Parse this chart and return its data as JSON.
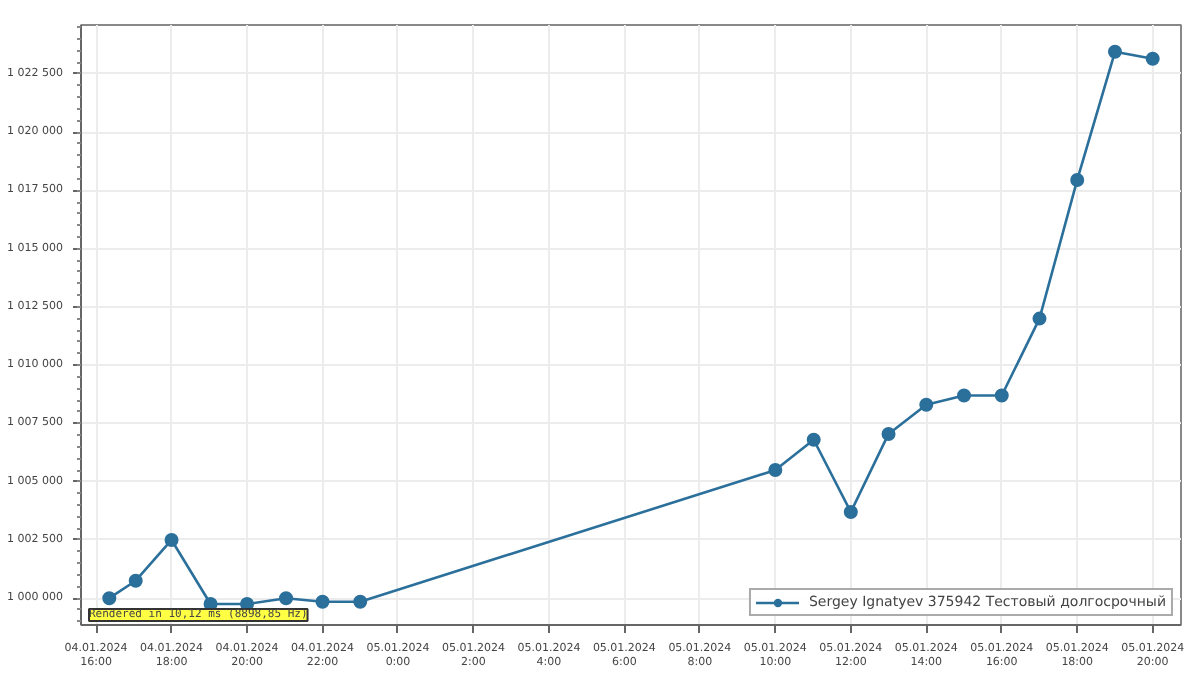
{
  "chart_data": {
    "type": "line",
    "x": [
      "2024-01-04T16:21",
      "2024-01-04T17:03",
      "2024-01-04T18:00",
      "2024-01-04T19:02",
      "2024-01-04T20:00",
      "2024-01-04T21:02",
      "2024-01-04T22:00",
      "2024-01-04T23:00",
      "2024-01-05T10:00",
      "2024-01-05T11:01",
      "2024-01-05T12:00",
      "2024-01-05T13:00",
      "2024-01-05T14:00",
      "2024-01-05T15:00",
      "2024-01-05T16:00",
      "2024-01-05T17:00",
      "2024-01-05T18:00",
      "2024-01-05T19:00",
      "2024-01-05T20:00"
    ],
    "series": [
      {
        "name": "Sergey Ignatyev 375942 Тестовый долгосрочный",
        "color": "#2b6f9b",
        "values": [
          1000000,
          1000750,
          1002500,
          999750,
          999750,
          1000000,
          999850,
          999850,
          1005500,
          1006800,
          1003700,
          1007050,
          1008300,
          1008700,
          1008700,
          1012000,
          1017950,
          1023450,
          1023150
        ]
      }
    ],
    "xlim": [
      "2024-01-04T15:36",
      "2024-01-05T20:45"
    ],
    "xticks": [
      {
        "value": "2024-01-04T16:00",
        "label": "04.01.2024\n16:00"
      },
      {
        "value": "2024-01-04T18:00",
        "label": "04.01.2024\n18:00"
      },
      {
        "value": "2024-01-04T20:00",
        "label": "04.01.2024\n20:00"
      },
      {
        "value": "2024-01-04T22:00",
        "label": "04.01.2024\n22:00"
      },
      {
        "value": "2024-01-05T00:00",
        "label": "05.01.2024\n0:00"
      },
      {
        "value": "2024-01-05T02:00",
        "label": "05.01.2024\n2:00"
      },
      {
        "value": "2024-01-05T04:00",
        "label": "05.01.2024\n4:00"
      },
      {
        "value": "2024-01-05T06:00",
        "label": "05.01.2024\n6:00"
      },
      {
        "value": "2024-01-05T08:00",
        "label": "05.01.2024\n8:00"
      },
      {
        "value": "2024-01-05T10:00",
        "label": "05.01.2024\n10:00"
      },
      {
        "value": "2024-01-05T12:00",
        "label": "05.01.2024\n12:00"
      },
      {
        "value": "2024-01-05T14:00",
        "label": "05.01.2024\n14:00"
      },
      {
        "value": "2024-01-05T16:00",
        "label": "05.01.2024\n16:00"
      },
      {
        "value": "2024-01-05T18:00",
        "label": "05.01.2024\n18:00"
      },
      {
        "value": "2024-01-05T20:00",
        "label": "05.01.2024\n20:00"
      }
    ],
    "ylim": [
      998850,
      1024600
    ],
    "yticks": [
      {
        "value": 1000000,
        "label": "1 000 000"
      },
      {
        "value": 1002500,
        "label": "1 002 500"
      },
      {
        "value": 1005000,
        "label": "1 005 000"
      },
      {
        "value": 1007500,
        "label": "1 007 500"
      },
      {
        "value": 1010000,
        "label": "1 010 000"
      },
      {
        "value": 1012500,
        "label": "1 012 500"
      },
      {
        "value": 1015000,
        "label": "1 015 000"
      },
      {
        "value": 1017500,
        "label": "1 017 500"
      },
      {
        "value": 1020000,
        "label": "1 020 000"
      },
      {
        "value": 1022500,
        "label": "1 022 500"
      }
    ],
    "annotations": [
      "Rendered in 10,12 ms (8898,85 Hz)"
    ],
    "grid": true,
    "legend": "bottom right",
    "marker": "circle",
    "line_style": "solid"
  }
}
